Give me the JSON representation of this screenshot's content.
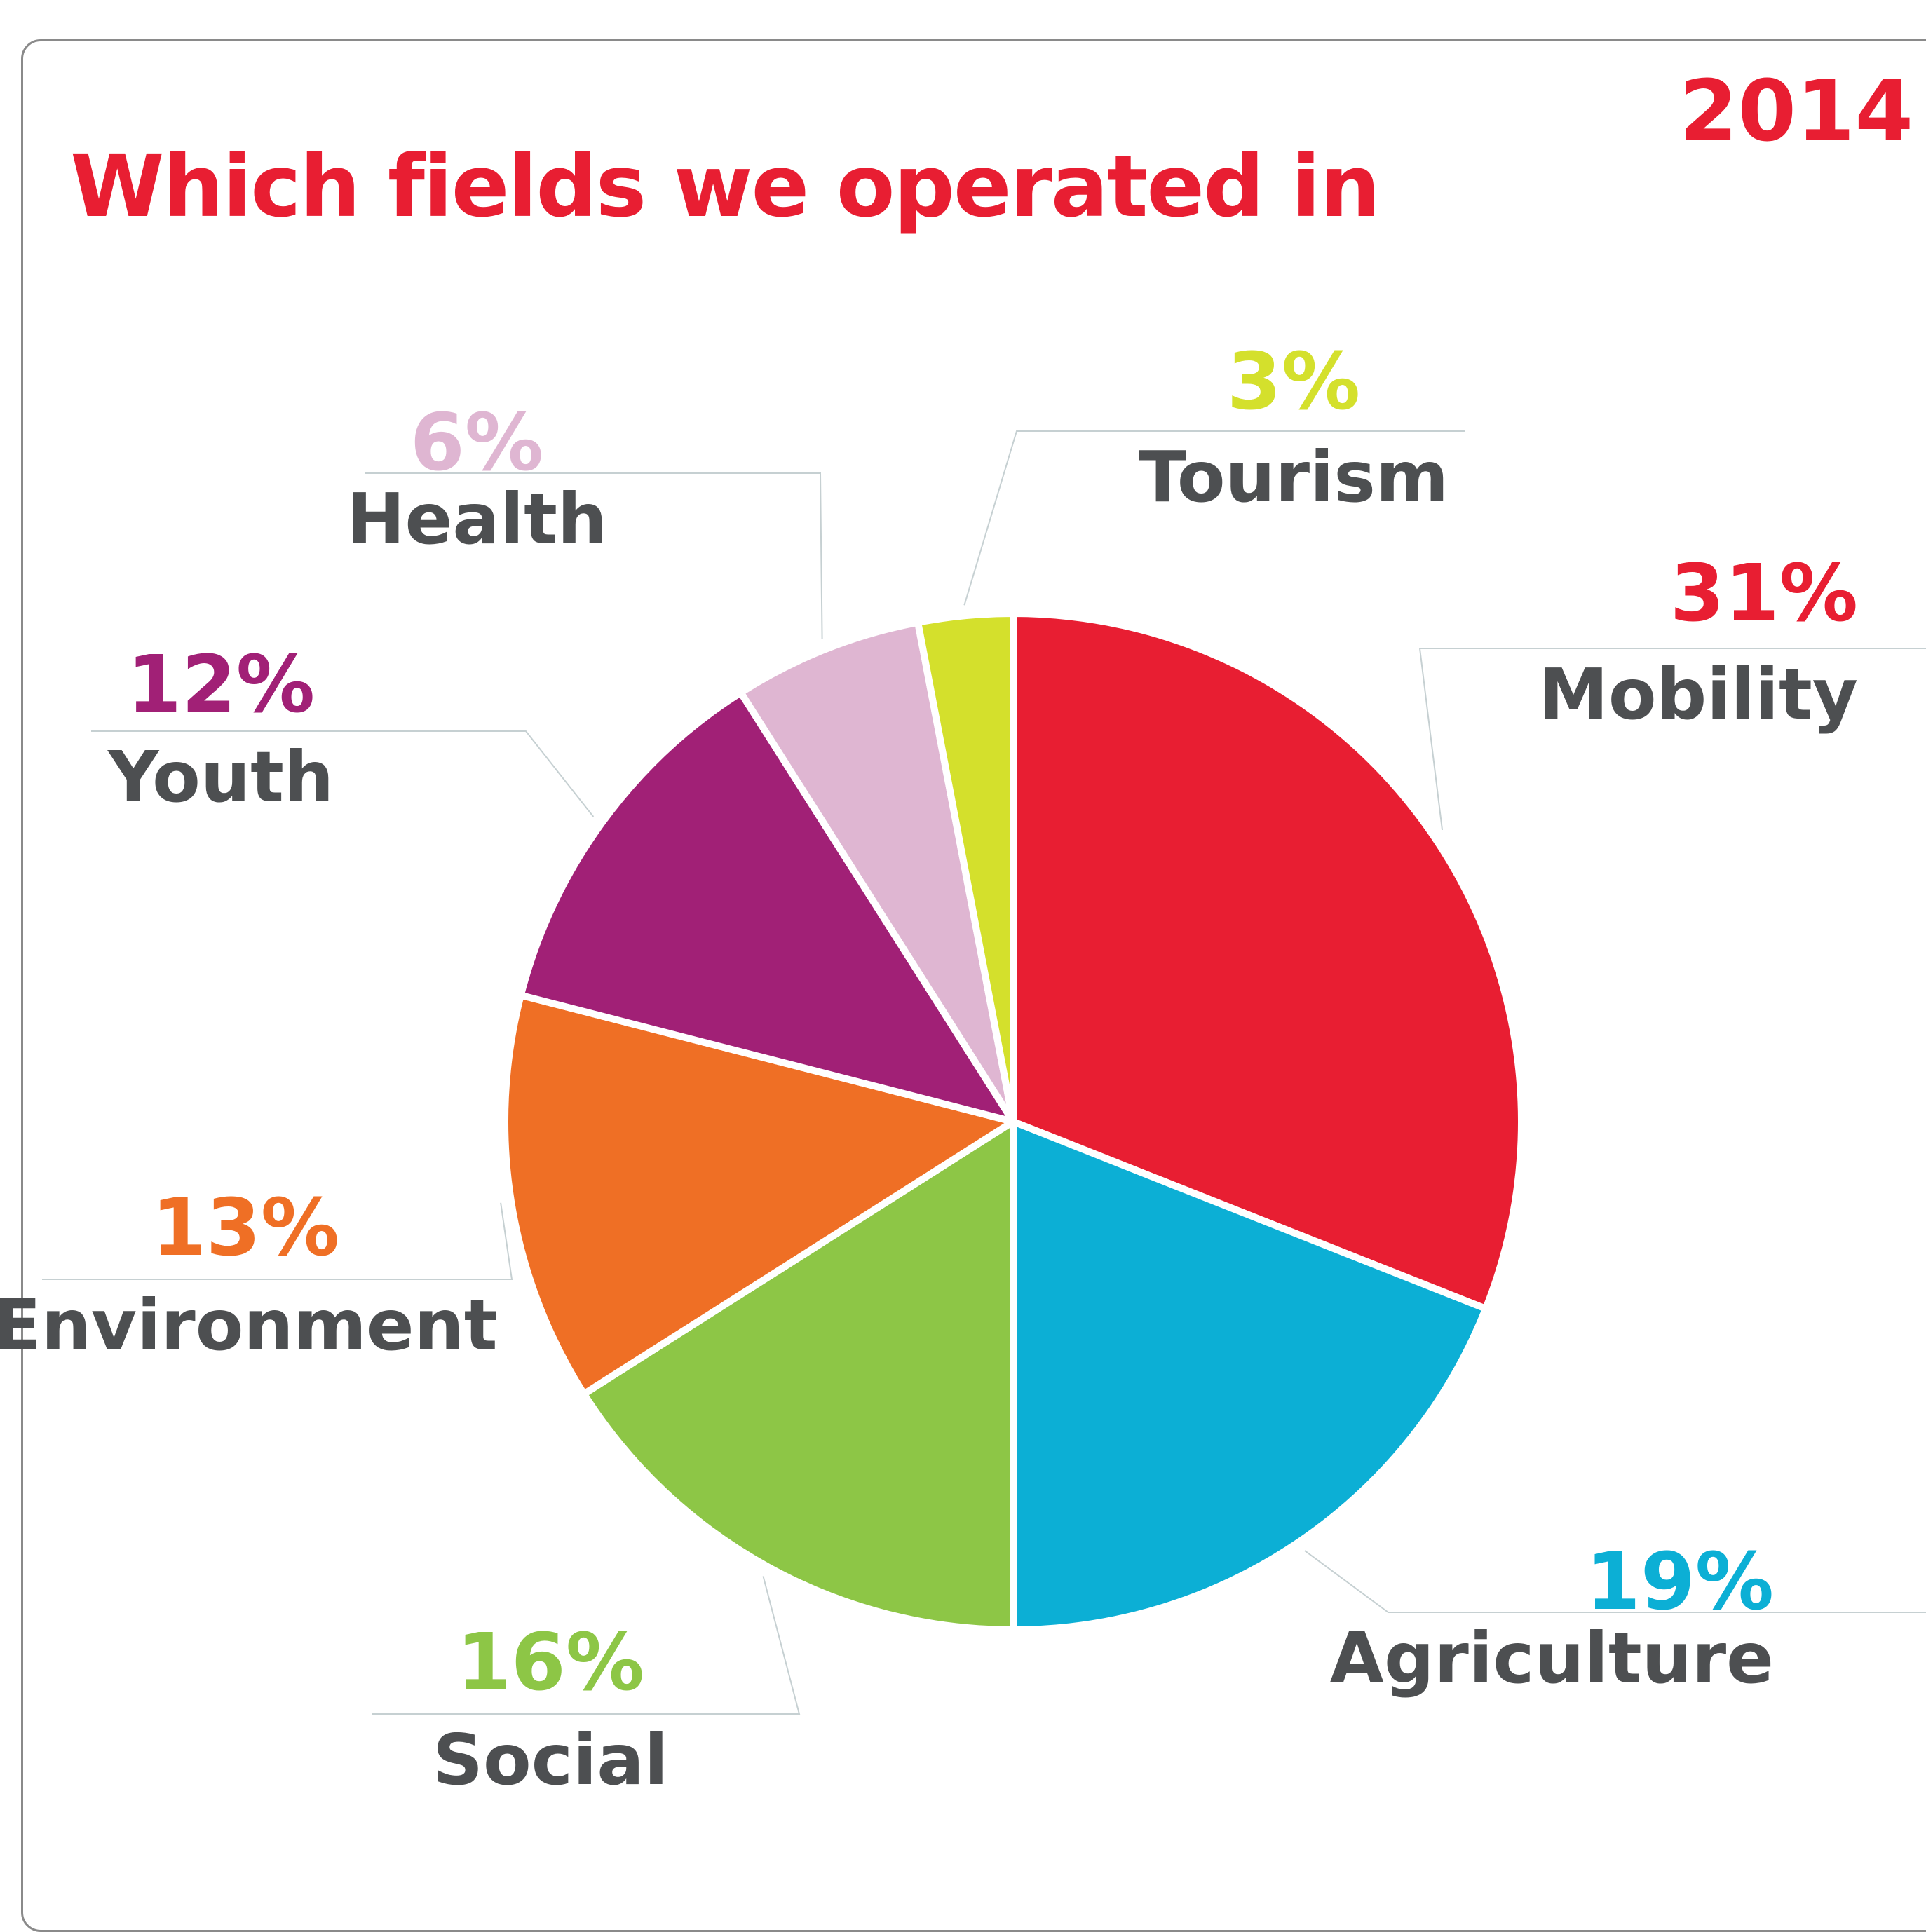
{
  "header": {
    "title": "Which fields we operated in",
    "year": "2014"
  },
  "chart_data": {
    "type": "pie",
    "title": "Which fields we operated in",
    "slices": [
      {
        "label": "Mobility",
        "value": 31,
        "display": "31%",
        "color": "#e81e32"
      },
      {
        "label": "Agriculture",
        "value": 19,
        "display": "19%",
        "color": "#0cafd5"
      },
      {
        "label": "Social",
        "value": 16,
        "display": "16%",
        "color": "#8dc646"
      },
      {
        "label": "Environment",
        "value": 13,
        "display": "13%",
        "color": "#ef6f25"
      },
      {
        "label": "Youth",
        "value": 12,
        "display": "12%",
        "color": "#a12076"
      },
      {
        "label": "Health",
        "value": 6,
        "display": "6%",
        "color": "#dfb6d2"
      },
      {
        "label": "Tourism",
        "value": 3,
        "display": "3%",
        "color": "#d4e02c"
      }
    ],
    "label_text_color": "#4d4f51",
    "legend": "none"
  }
}
